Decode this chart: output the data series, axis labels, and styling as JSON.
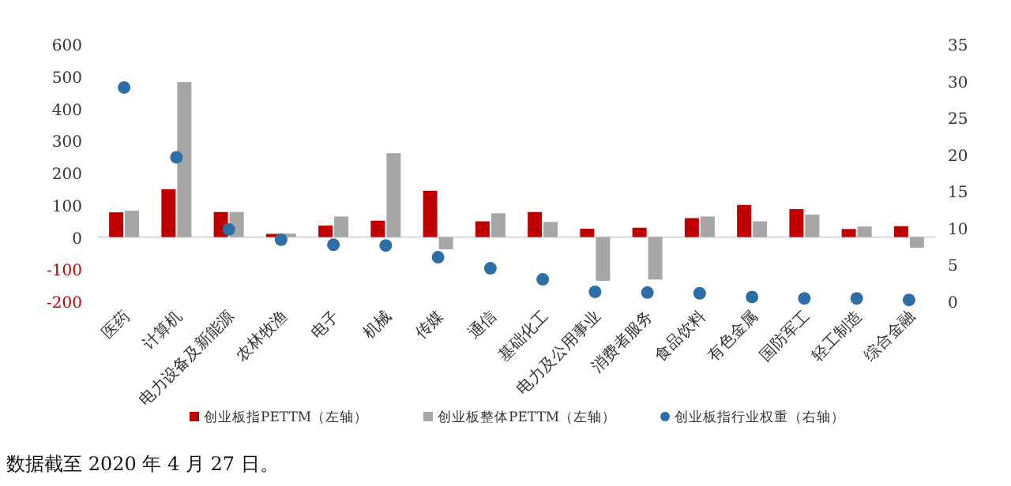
{
  "chart_data": {
    "type": "bar",
    "categories": [
      "医药",
      "计算机",
      "电力设备及新能源",
      "农林牧渔",
      "电子",
      "机械",
      "传媒",
      "通信",
      "基础化工",
      "电力及公用事业",
      "消费者服务",
      "食品饮料",
      "有色金属",
      "国防军工",
      "轻工制造",
      "综合金融"
    ],
    "series": [
      {
        "name": "创业板指PETTM（左轴）",
        "color": "#c00000",
        "values": [
          77,
          149,
          78,
          10,
          36,
          51,
          144,
          49,
          78,
          26,
          29,
          59,
          100,
          87,
          25,
          34
        ]
      },
      {
        "name": "创业板整体PETTM（左轴）",
        "color": "#a6a6a6",
        "values": [
          82,
          482,
          78,
          11,
          64,
          261,
          -38,
          74,
          47,
          -136,
          -132,
          64,
          49,
          70,
          33,
          -33
        ]
      },
      {
        "name": "创业板指行业权重（右轴）",
        "type": "scatter",
        "axis": "y2",
        "color": "#2e6ea6",
        "values": [
          29.1,
          19.6,
          9.8,
          8.4,
          7.7,
          7.6,
          6.0,
          4.5,
          3.0,
          1.3,
          1.2,
          1.1,
          0.6,
          0.4,
          0.4,
          0.2
        ]
      }
    ],
    "ylim": [
      -200,
      600
    ],
    "yticks": [
      -200,
      -100,
      0,
      100,
      200,
      300,
      400,
      500,
      600
    ],
    "y2lim": [
      0,
      35
    ],
    "y2ticks": [
      0,
      5,
      10,
      15,
      20,
      25,
      30,
      35
    ],
    "marker": "circle",
    "legend": "bottom",
    "annotations": [
      "数据截至 2020 年 4 月 27 日。"
    ]
  }
}
